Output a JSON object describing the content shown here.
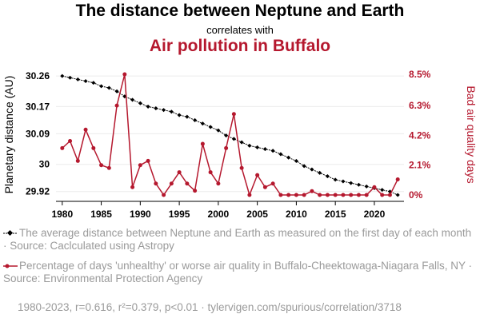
{
  "header": {
    "title": "The distance between Neptune and Earth",
    "subtitle": "correlates with",
    "title2": "Air pollution in Buffalo"
  },
  "legend": {
    "series1": "The average distance between Neptune and Earth as measured on the first day of each month · Source: Caclculated using Astropy",
    "series2": "Percentage of days 'unhealthy' or worse air quality in Buffalo-Cheektowaga-Niagara Falls, NY · Source: Environmental Protection Agency"
  },
  "footer": "1980-2023, r=0.616, r²=0.379, p<0.01 · tylervigen.com/spurious/correlation/3718",
  "colors": {
    "series1": "#000000",
    "series2": "#b5182e",
    "grid": "#ececec",
    "muted": "#9a9a9a"
  },
  "chart_data": {
    "type": "line",
    "x": [
      1980,
      1981,
      1982,
      1983,
      1984,
      1985,
      1986,
      1987,
      1988,
      1989,
      1990,
      1991,
      1992,
      1993,
      1994,
      1995,
      1996,
      1997,
      1998,
      1999,
      2000,
      2001,
      2002,
      2003,
      2004,
      2005,
      2006,
      2007,
      2008,
      2009,
      2010,
      2011,
      2012,
      2013,
      2014,
      2015,
      2016,
      2017,
      2018,
      2019,
      2020,
      2021,
      2022,
      2023
    ],
    "xticks": [
      1980,
      1985,
      1990,
      1995,
      2000,
      2005,
      2010,
      2015,
      2020
    ],
    "xlim": [
      1979.2,
      2023.8
    ],
    "series": [
      {
        "name": "The average distance between Neptune and Earth as measured on the first day of each month",
        "axis": "left",
        "marker": "diamond",
        "values": [
          30.26,
          30.255,
          30.25,
          30.245,
          30.24,
          30.23,
          30.225,
          30.215,
          30.2,
          30.19,
          30.18,
          30.17,
          30.165,
          30.16,
          30.155,
          30.145,
          30.14,
          30.13,
          30.12,
          30.11,
          30.1,
          30.085,
          30.075,
          30.065,
          30.055,
          30.05,
          30.045,
          30.04,
          30.03,
          30.02,
          30.01,
          29.995,
          29.985,
          29.975,
          29.965,
          29.955,
          29.95,
          29.945,
          29.94,
          29.935,
          29.93,
          29.925,
          29.92,
          29.91
        ]
      },
      {
        "name": "Percentage of days 'unhealthy' or worse air quality in Buffalo-Cheektowaga-Niagara Falls, NY",
        "axis": "right",
        "marker": "circle",
        "values": [
          3.3,
          3.8,
          2.4,
          4.6,
          3.3,
          2.1,
          1.9,
          6.3,
          8.5,
          0.55,
          2.1,
          2.4,
          0.8,
          0.0,
          0.8,
          1.6,
          0.8,
          0.3,
          3.6,
          1.6,
          0.8,
          3.3,
          5.7,
          1.9,
          0.0,
          1.4,
          0.55,
          0.8,
          0.0,
          0.0,
          0.0,
          0.0,
          0.27,
          0.0,
          0.0,
          0.0,
          0.0,
          0.0,
          0.0,
          0.0,
          0.55,
          0.0,
          0.0,
          1.1
        ]
      }
    ],
    "left_axis": {
      "label": "Planetary distance (AU)",
      "ticks": [
        29.92,
        30.0,
        30.09,
        30.17,
        30.26
      ],
      "ylim": [
        29.91,
        30.265
      ]
    },
    "right_axis": {
      "label": "Bad air quality days",
      "ticks": [
        "0%",
        "2.1%",
        "4.2%",
        "6.3%",
        "8.5%"
      ],
      "tick_values": [
        0,
        2.1,
        4.2,
        6.3,
        8.5
      ],
      "ylim": [
        0,
        8.5
      ]
    },
    "grid": true,
    "legend_position": "bottom"
  }
}
